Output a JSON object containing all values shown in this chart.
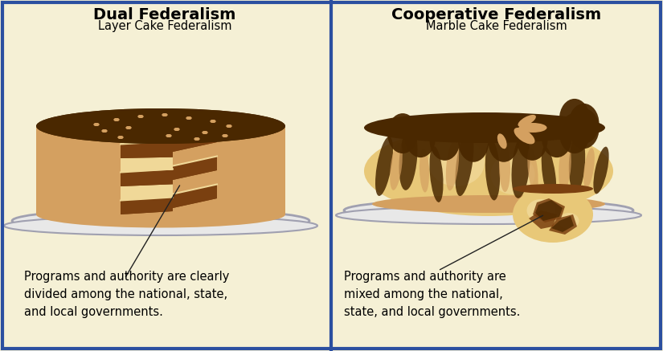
{
  "background_color": "#f5f0d5",
  "border_color": "#2b4fa0",
  "border_width": 3,
  "left_title": "Dual Federalism",
  "left_subtitle": "Layer Cake Federalism",
  "right_title": "Cooperative Federalism",
  "right_subtitle": "Marble Cake Federalism",
  "left_description": "Programs and authority are clearly\ndivided among the national, state,\nand local governments.",
  "right_description": "Programs and authority are\nmixed among the national,\nstate, and local governments.",
  "title_fontsize": 14,
  "subtitle_fontsize": 10.5,
  "desc_fontsize": 10.5,
  "choc_dark": "#4a2800",
  "choc_brown": "#7a4010",
  "choc_mid": "#9a5520",
  "cake_tan": "#d4a060",
  "cake_cream": "#e8c878",
  "cake_light": "#f0d898",
  "plate_color": "#e8e8e8",
  "plate_edge": "#a0a0b0",
  "line_color": "#222222"
}
